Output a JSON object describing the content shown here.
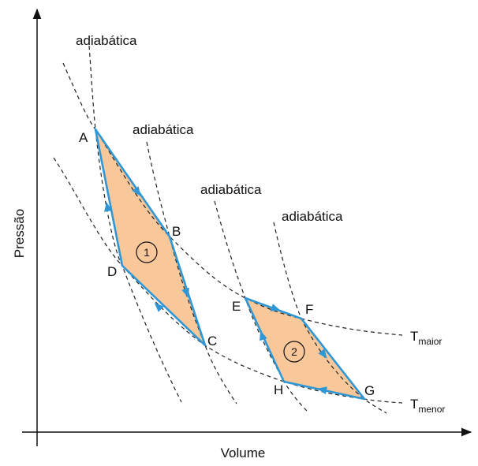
{
  "axes": {
    "y_label": "Pressão",
    "x_label": "Volume"
  },
  "adiabatic_labels": [
    "adiabática",
    "adiabática",
    "adiabática",
    "adiabática"
  ],
  "isotherms": {
    "hot": {
      "base": "T",
      "sub": "maior"
    },
    "cold": {
      "base": "T",
      "sub": "menor"
    }
  },
  "points": [
    "A",
    "B",
    "C",
    "D",
    "E",
    "F",
    "G",
    "H"
  ],
  "cycles": [
    "1",
    "2"
  ],
  "colors": {
    "edge": "#2f97d6",
    "fill": "#f8c79a",
    "dash": "#222222"
  }
}
